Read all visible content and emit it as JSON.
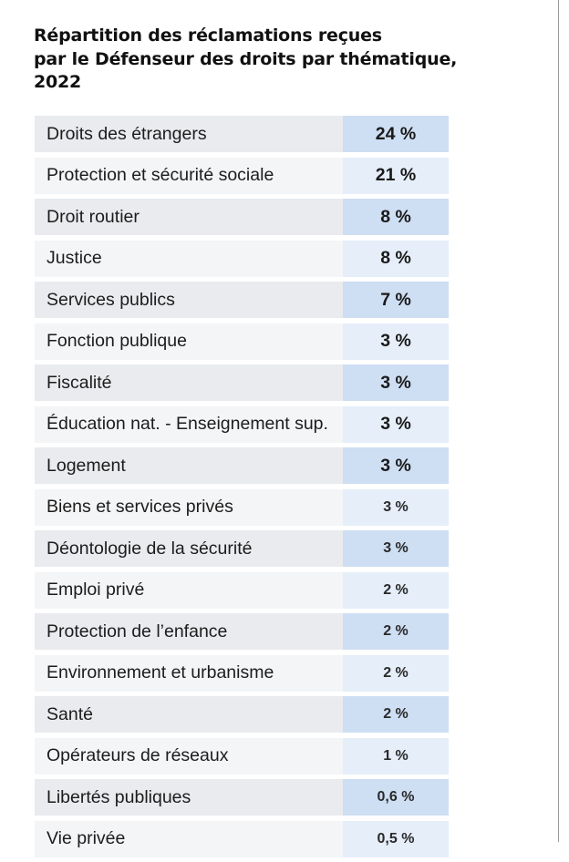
{
  "title_lines": [
    "Répartition des réclamations reçues",
    "par le Défenseur des droits par thématique,",
    "2022"
  ],
  "rows": [
    {
      "label": "Droits des étrangers",
      "value": "24 %"
    },
    {
      "label": "Protection et sécurité sociale",
      "value": "21 %"
    },
    {
      "label": "Droit routier",
      "value": "8 %"
    },
    {
      "label": "Justice",
      "value": "8 %"
    },
    {
      "label": "Services publics",
      "value": "7 %"
    },
    {
      "label": "Fonction publique",
      "value": "3 %"
    },
    {
      "label": "Fiscalité",
      "value": "3 %"
    },
    {
      "label": "Éducation nat. - Enseignement sup.",
      "value": "3 %"
    },
    {
      "label": "Logement",
      "value": "3 %"
    },
    {
      "label": "Biens et services privés",
      "value": "3 %"
    },
    {
      "label": "Déontologie de la sécurité",
      "value": "3 %"
    },
    {
      "label": "Emploi privé",
      "value": "2 %"
    },
    {
      "label": "Protection de l’enfance",
      "value": "2 %"
    },
    {
      "label": "Environnement et urbanisme",
      "value": "2 %"
    },
    {
      "label": "Santé",
      "value": "2 %"
    },
    {
      "label": "Opérateurs de réseaux",
      "value": "1 %"
    },
    {
      "label": "Libertés publiques",
      "value": "0,6 %"
    },
    {
      "label": "Vie privée",
      "value": "0,5 %"
    }
  ]
}
